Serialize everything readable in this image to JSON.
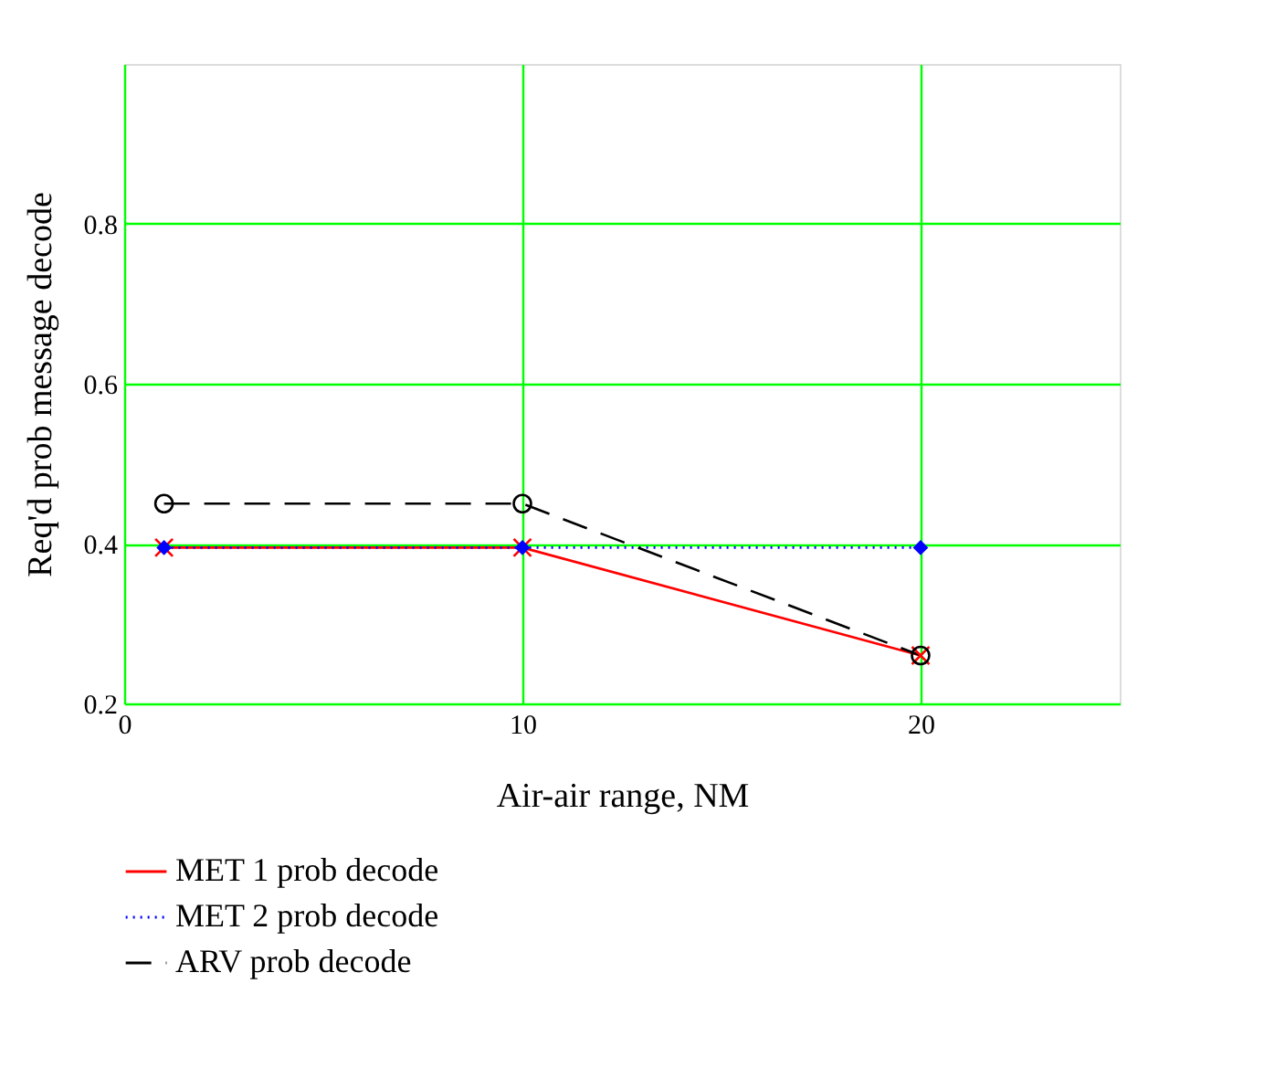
{
  "chart_data": {
    "type": "line",
    "xlabel": "Air-air range, NM",
    "ylabel": "Req'd prob message decode",
    "x": [
      1,
      10,
      20
    ],
    "series": [
      {
        "name": "MET 1 prob decode",
        "color": "#ff0000",
        "values": [
          0.395,
          0.395,
          0.26
        ],
        "marker": "cross",
        "line_style": "solid"
      },
      {
        "name": "MET 2 prob decode",
        "color": "#0000ff",
        "values": [
          0.395,
          0.395,
          0.395
        ],
        "marker": "diamond",
        "line_style": "dotted"
      },
      {
        "name": "ARV prob decode",
        "color": "#000000",
        "values": [
          0.45,
          0.45,
          0.26
        ],
        "marker": "circle",
        "line_style": "dashed"
      }
    ],
    "xlim": [
      0,
      25
    ],
    "xticks": [
      0,
      10,
      20
    ],
    "ylim": [
      0.2,
      1.0
    ],
    "yticks": [
      0.2,
      0.4,
      0.6,
      0.8
    ],
    "grid": true,
    "legend": "bottom"
  }
}
